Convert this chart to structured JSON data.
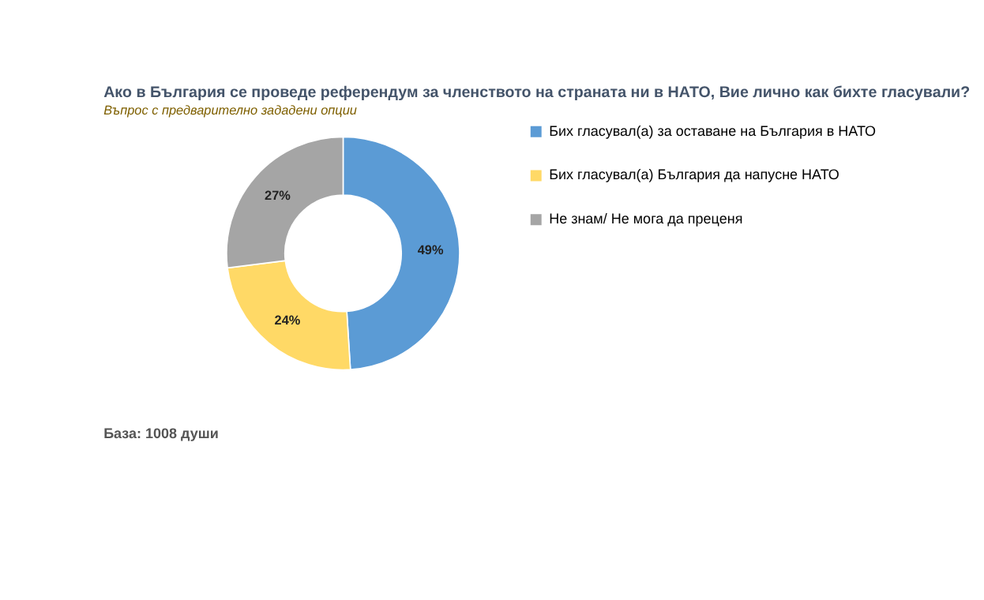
{
  "chart_data": {
    "type": "donut",
    "title": "Ако в България се проведе референдум за членството на страната ни в НАТО, Вие лично как бихте гласували?",
    "subtitle": "Въпрос с предварително зададени опции",
    "categories": [
      "Бих гласувал(а) за оставане на България в НАТО",
      "Бих гласувал(а) България да напусне НАТО",
      "Не знам/ Не мога да преценя"
    ],
    "values": [
      49,
      24,
      27
    ],
    "colors": [
      "#5b9bd5",
      "#ffd966",
      "#a5a5a5"
    ],
    "value_labels": [
      "49%",
      "24%",
      "27%"
    ],
    "legend": "right",
    "annotations": [
      "База: 1008 души"
    ]
  }
}
